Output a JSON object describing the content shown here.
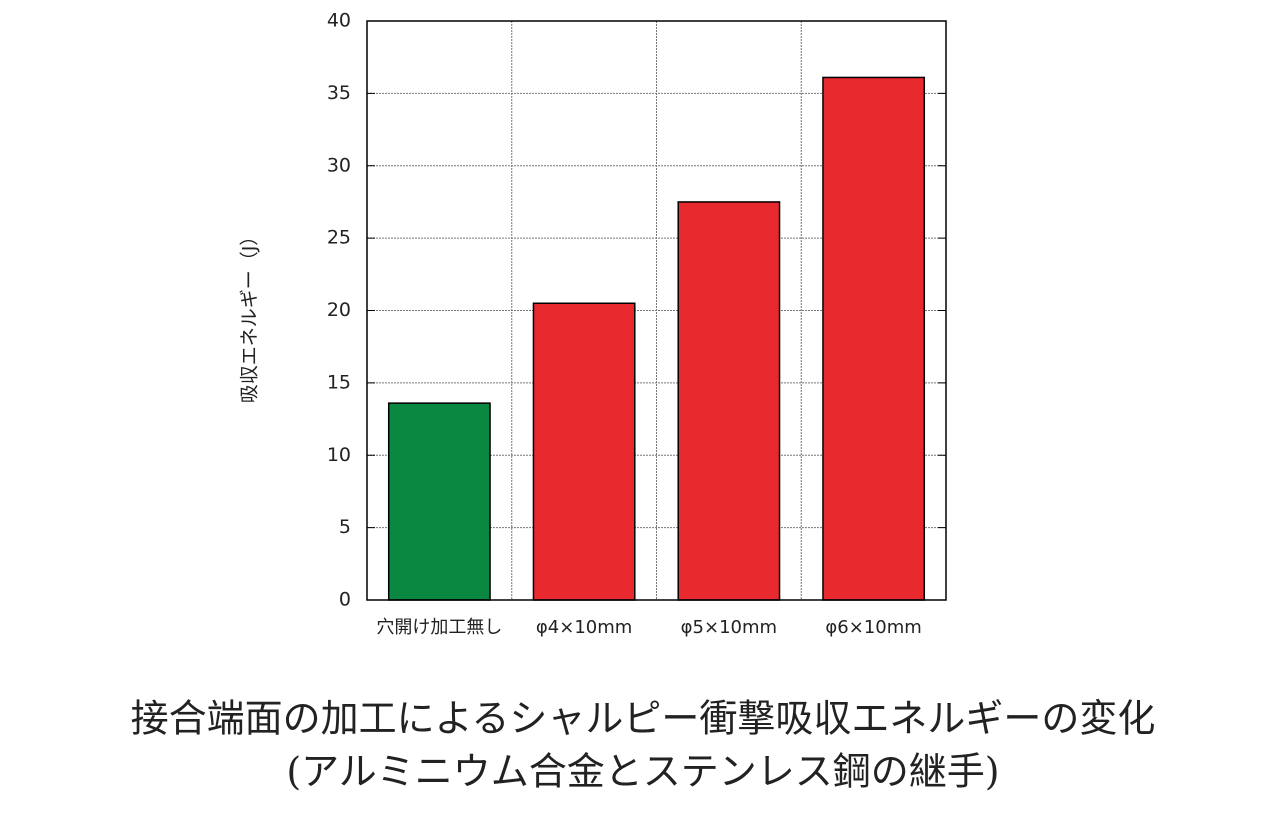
{
  "chart_data": {
    "type": "bar",
    "title": "接合端面の加工によるシャルピー衝撃吸収エネルギーの変化",
    "subtitle": "(アルミニウム合金とステンレス鋼の継手)",
    "y_label": "吸収エネルギー（J）",
    "categories": [
      "穴開け加工無し",
      "φ4×10mm",
      "φ5×10mm",
      "φ6×10mm"
    ],
    "values": [
      13.6,
      20.5,
      27.5,
      36.1
    ],
    "colors": [
      "#0a8740",
      "#e8292e",
      "#e8292e",
      "#e8292e"
    ],
    "ylim": [
      0,
      40
    ],
    "yticks": [
      0,
      5,
      10,
      15,
      20,
      25,
      30,
      35,
      40
    ],
    "grid": true
  }
}
